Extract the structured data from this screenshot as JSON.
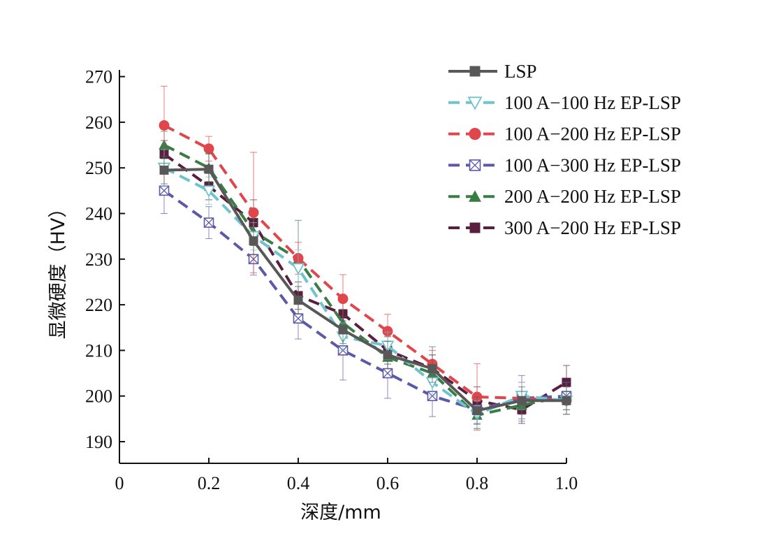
{
  "chart_data": {
    "type": "line",
    "xlabel": "深度/mm",
    "ylabel": "显微硬度（HV）",
    "xlim": [
      0,
      1.0
    ],
    "ylim": [
      185,
      270
    ],
    "x_ticks": [
      "0",
      "0.2",
      "0.4",
      "0.6",
      "0.8",
      "1.0"
    ],
    "y_ticks": [
      "190",
      "200",
      "210",
      "220",
      "230",
      "240",
      "250",
      "260",
      "270"
    ],
    "x": [
      0.1,
      0.2,
      0.3,
      0.4,
      0.5,
      0.6,
      0.7,
      0.8,
      0.9,
      1.0
    ],
    "legend": "top-right",
    "series": [
      {
        "name": "LSP",
        "color": "#585858",
        "dash": "solid",
        "marker": "square-filled",
        "values": [
          249.5,
          249.7,
          234,
          221,
          214.5,
          209,
          206,
          196.8,
          199,
          199
        ],
        "errors": [
          3,
          3.5,
          3,
          3,
          3,
          3,
          3,
          3,
          3,
          3
        ]
      },
      {
        "name": "100 A−100 Hz EP-LSP",
        "color": "#6fc3cf",
        "dash": "dashed",
        "marker": "triangle-down-open",
        "values": [
          250,
          245,
          235,
          228,
          213,
          211,
          203,
          196,
          200,
          199
        ],
        "errors": [
          4,
          3,
          3,
          4,
          3,
          3,
          3,
          3,
          3,
          3
        ]
      },
      {
        "name": "100 A−200 Hz EP-LSP",
        "color": "#e0474c",
        "dash": "dashed",
        "marker": "circle-filled",
        "values": [
          259.3,
          254.2,
          240.2,
          230.2,
          221.3,
          214.2,
          207,
          199.8,
          199.5,
          199
        ],
        "errors": [
          8.6,
          2.7,
          13.2,
          3.5,
          5.3,
          3.7,
          3,
          7.3,
          3.5,
          3
        ]
      },
      {
        "name": "100 A−300 Hz EP-LSP",
        "color": "#5c5aa8",
        "dash": "dashed",
        "marker": "square-cross",
        "values": [
          245,
          238,
          230,
          217,
          210,
          205,
          200,
          197,
          199.5,
          200
        ],
        "errors": [
          5,
          3.5,
          3.5,
          4.5,
          6.5,
          5.5,
          4.5,
          3,
          5,
          3
        ]
      },
      {
        "name": "200 A−200 Hz EP-LSP",
        "color": "#3a7d44",
        "dash": "dashed",
        "marker": "triangle-up-filled",
        "values": [
          255,
          250,
          236,
          230,
          216,
          208.5,
          205,
          195.8,
          198,
          200
        ],
        "errors": [
          3,
          3,
          3,
          8.5,
          3,
          3,
          5.8,
          3,
          3,
          3
        ]
      },
      {
        "name": "300 A−200 Hz EP-LSP",
        "color": "#5a1f3f",
        "dash": "dashed",
        "marker": "square-filled-dark",
        "values": [
          253,
          246,
          238,
          222,
          218,
          210,
          206,
          199,
          197,
          203
        ],
        "errors": [
          3,
          3,
          5,
          3,
          3,
          3,
          3,
          3,
          3,
          3.7
        ]
      }
    ]
  }
}
